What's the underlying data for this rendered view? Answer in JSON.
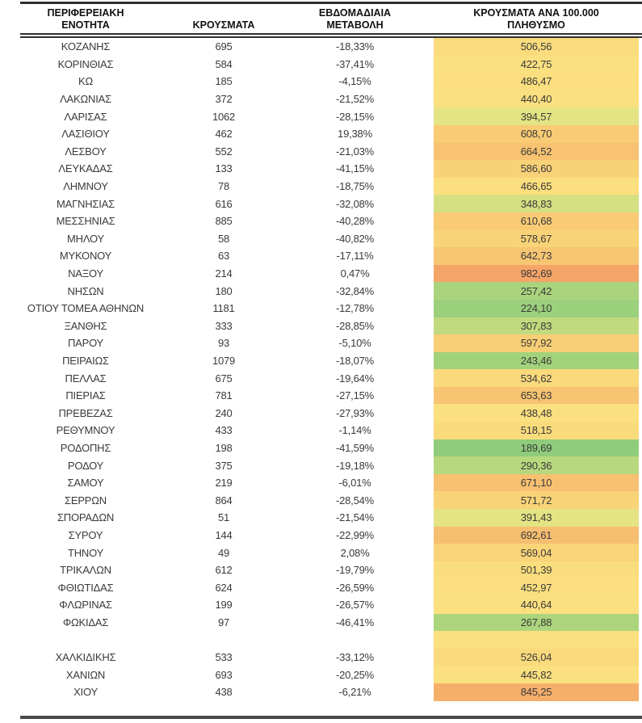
{
  "table": {
    "headers": [
      {
        "line1": "ΠΕΡΙΦΕΡΕΙΑΚΗ",
        "line2": "ΕΝΟΤΗΤΑ"
      },
      {
        "line1": "",
        "line2": "ΚΡΟΥΣΜΑΤΑ"
      },
      {
        "line1": "ΕΒΔΟΜΑΔΙΑΙΑ",
        "line2": "ΜΕΤΑΒΟΛΗ"
      },
      {
        "line1": "ΚΡΟΥΣΜΑΤΑ ΑΝΑ 100.000",
        "line2": "ΠΛΗΘΥΣΜΟ"
      }
    ],
    "rows": [
      {
        "region": "ΚΟΖΑΝΗΣ",
        "cases": "695",
        "change": "-18,33%",
        "per100k": "506,56",
        "cell_color": "#FADC7D"
      },
      {
        "region": "ΚΟΡΙΝΘΙΑΣ",
        "cases": "584",
        "change": "-37,41%",
        "per100k": "422,75",
        "cell_color": "#FBE07F"
      },
      {
        "region": "ΚΩ",
        "cases": "185",
        "change": "-4,15%",
        "per100k": "486,47",
        "cell_color": "#FBDF7E"
      },
      {
        "region": "ΛΑΚΩΝΙΑΣ",
        "cases": "372",
        "change": "-21,52%",
        "per100k": "440,40",
        "cell_color": "#FBE07F"
      },
      {
        "region": "ΛΑΡΙΣΑΣ",
        "cases": "1062",
        "change": "-28,15%",
        "per100k": "394,57",
        "cell_color": "#E4E484"
      },
      {
        "region": "ΛΑΣΙΘΙΟΥ",
        "cases": "462",
        "change": "19,38%",
        "per100k": "608,70",
        "cell_color": "#F8CB74"
      },
      {
        "region": "ΛΕΣΒΟΥ",
        "cases": "552",
        "change": "-21,03%",
        "per100k": "664,52",
        "cell_color": "#F7C271"
      },
      {
        "region": "ΛΕΥΚΑΔΑΣ",
        "cases": "133",
        "change": "-41,15%",
        "per100k": "586,60",
        "cell_color": "#F9D177"
      },
      {
        "region": "ΛΗΜΝΟΥ",
        "cases": "78",
        "change": "-18,75%",
        "per100k": "466,65",
        "cell_color": "#FBDF7E"
      },
      {
        "region": "ΜΑΓΝΗΣΙΑΣ",
        "cases": "616",
        "change": "-32,08%",
        "per100k": "348,83",
        "cell_color": "#D4E082"
      },
      {
        "region": "ΜΕΣΣΗΝΙΑΣ",
        "cases": "885",
        "change": "-40,28%",
        "per100k": "610,68",
        "cell_color": "#F8CB74"
      },
      {
        "region": "ΜΗΛΟΥ",
        "cases": "58",
        "change": "-40,82%",
        "per100k": "578,67",
        "cell_color": "#F9D377"
      },
      {
        "region": "ΜΥΚΟΝΟΥ",
        "cases": "63",
        "change": "-17,11%",
        "per100k": "642,73",
        "cell_color": "#F7C673"
      },
      {
        "region": "ΝΑΞΟΥ",
        "cases": "214",
        "change": "0,47%",
        "per100k": "982,69",
        "cell_color": "#F5A568"
      },
      {
        "region": "ΝΗΣΩΝ",
        "cases": "180",
        "change": "-32,84%",
        "per100k": "257,42",
        "cell_color": "#A9D47D"
      },
      {
        "region": "ΟΤΙΟΥ ΤΟΜΕΑ ΑΘΗΝΩΝ",
        "cases": "1181",
        "change": "-12,78%",
        "per100k": "224,10",
        "cell_color": "#9BD07C"
      },
      {
        "region": "ΞΑΝΘΗΣ",
        "cases": "333",
        "change": "-28,85%",
        "per100k": "307,83",
        "cell_color": "#C1DA7F"
      },
      {
        "region": "ΠΑΡΟΥ",
        "cases": "93",
        "change": "-5,10%",
        "per100k": "597,92",
        "cell_color": "#F8CF76"
      },
      {
        "region": "ΠΕΙΡΑΙΩΣ",
        "cases": "1079",
        "change": "-18,07%",
        "per100k": "243,46",
        "cell_color": "#A3D27C"
      },
      {
        "region": "ΠΕΛΛΑΣ",
        "cases": "675",
        "change": "-19,64%",
        "per100k": "534,62",
        "cell_color": "#FAD97B"
      },
      {
        "region": "ΠΙΕΡΙΑΣ",
        "cases": "781",
        "change": "-27,15%",
        "per100k": "653,63",
        "cell_color": "#F7C472"
      },
      {
        "region": "ΠΡΕΒΕΖΑΣ",
        "cases": "240",
        "change": "-27,93%",
        "per100k": "438,48",
        "cell_color": "#FBE07F"
      },
      {
        "region": "ΡΕΘΥΜΝΟΥ",
        "cases": "433",
        "change": "-1,14%",
        "per100k": "518,15",
        "cell_color": "#FADB7C"
      },
      {
        "region": "ΡΟΔΟΠΗΣ",
        "cases": "198",
        "change": "-41,59%",
        "per100k": "189,69",
        "cell_color": "#8FCC7B"
      },
      {
        "region": "ΡΟΔΟΥ",
        "cases": "375",
        "change": "-19,18%",
        "per100k": "290,36",
        "cell_color": "#B8D87E"
      },
      {
        "region": "ΣΑΜΟΥ",
        "cases": "219",
        "change": "-6,01%",
        "per100k": "671,10",
        "cell_color": "#F7C171"
      },
      {
        "region": "ΣΕΡΡΩΝ",
        "cases": "864",
        "change": "-28,54%",
        "per100k": "571,72",
        "cell_color": "#F9D377"
      },
      {
        "region": "ΣΠΟΡΑΔΩΝ",
        "cases": "51",
        "change": "-21,54%",
        "per100k": "391,43",
        "cell_color": "#E4E484"
      },
      {
        "region": "ΣΥΡΟΥ",
        "cases": "144",
        "change": "-22,99%",
        "per100k": "692,61",
        "cell_color": "#F6BE70"
      },
      {
        "region": "ΤΗΝΟΥ",
        "cases": "49",
        "change": "2,08%",
        "per100k": "569,04",
        "cell_color": "#F9D478"
      },
      {
        "region": "ΤΡΙΚΑΛΩΝ",
        "cases": "612",
        "change": "-19,79%",
        "per100k": "501,39",
        "cell_color": "#FADD7D"
      },
      {
        "region": "ΦΘΙΩΤΙΔΑΣ",
        "cases": "624",
        "change": "-26,59%",
        "per100k": "452,97",
        "cell_color": "#FBDF7E"
      },
      {
        "region": "ΦΛΩΡΙΝΑΣ",
        "cases": "199",
        "change": "-26,57%",
        "per100k": "440,64",
        "cell_color": "#FBE07F"
      },
      {
        "region": "ΦΩΚΙΔΑΣ",
        "cases": "97",
        "change": "-46,41%",
        "per100k": "267,88",
        "cell_color": "#ADD57D"
      },
      {
        "region": "",
        "cases": "",
        "change": "",
        "per100k": "",
        "cell_color": "#FBE07F"
      },
      {
        "region": "ΧΑΛΚΙΔΙΚΗΣ",
        "cases": "533",
        "change": "-33,12%",
        "per100k": "526,04",
        "cell_color": "#FADA7C"
      },
      {
        "region": "ΧΑΝΙΩΝ",
        "cases": "693",
        "change": "-20,25%",
        "per100k": "445,82",
        "cell_color": "#FBE07F"
      },
      {
        "region": "ΧΙΟΥ",
        "cases": "438",
        "change": "-6,21%",
        "per100k": "845,25",
        "cell_color": "#F6AF6B"
      }
    ]
  },
  "colors": {
    "top_rule": "#2f2f2f",
    "header_divider": "#2f2f2f",
    "bottom_rule": "#4a4a4a",
    "header_text": "#111111",
    "body_text": "#3a3a3a",
    "heat_scale_low": "#8FCC7B",
    "heat_scale_mid": "#FBE07F",
    "heat_scale_high": "#F5A568"
  }
}
